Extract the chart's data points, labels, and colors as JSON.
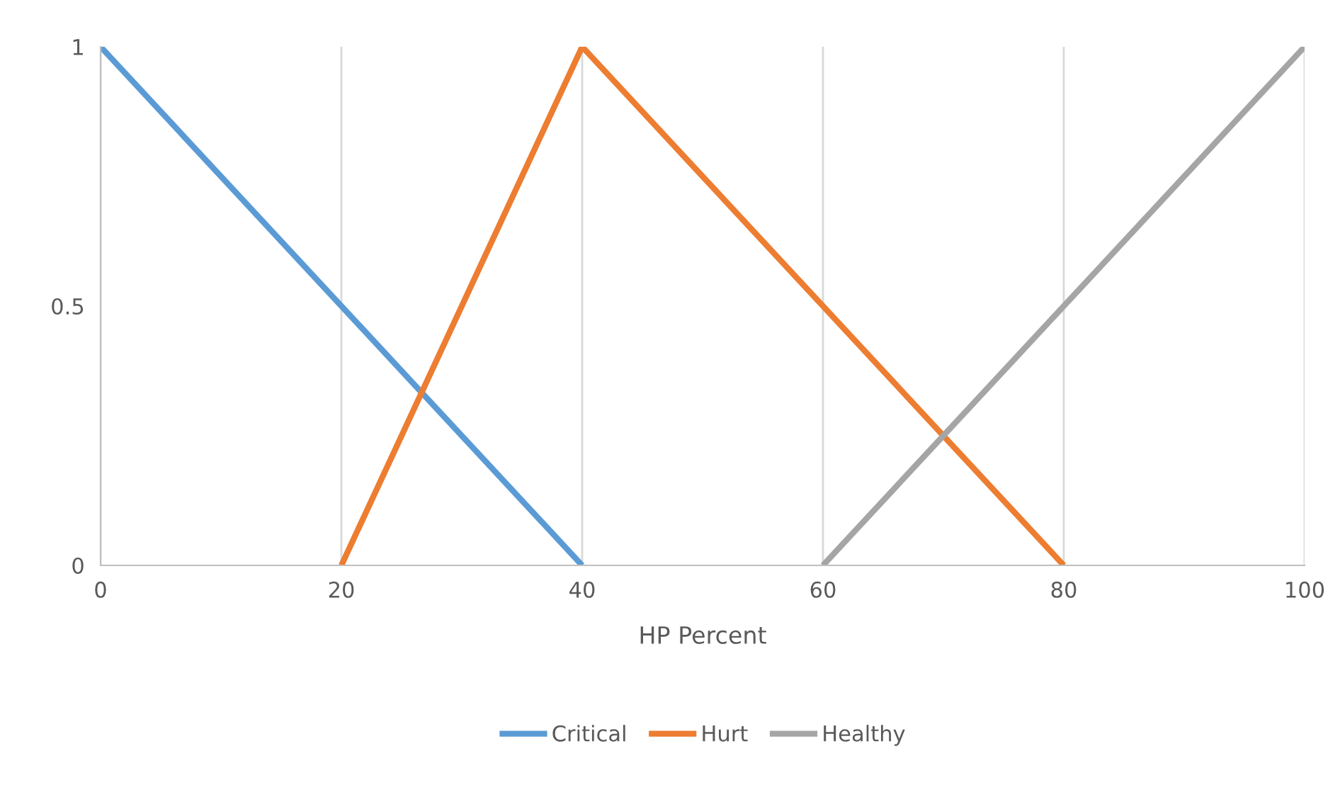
{
  "chart_data": {
    "type": "line",
    "xlabel": "HP Percent",
    "series": [
      {
        "name": "Critical",
        "color": "#5b9bd5",
        "x": [
          0,
          40
        ],
        "values": [
          1,
          0
        ]
      },
      {
        "name": "Hurt",
        "color": "#ed7d31",
        "x": [
          20,
          40,
          80
        ],
        "values": [
          0,
          1,
          0
        ]
      },
      {
        "name": "Healthy",
        "color": "#a5a5a5",
        "x": [
          60,
          100
        ],
        "values": [
          0,
          1
        ]
      }
    ],
    "xlim": [
      0,
      100
    ],
    "xticks": [
      0,
      20,
      40,
      60,
      80,
      100
    ],
    "ylim": [
      0,
      1
    ],
    "yticks": [
      0,
      0.5,
      1
    ],
    "grid": "x",
    "legend": "bottom",
    "marker": "none",
    "line_style": "solid"
  }
}
